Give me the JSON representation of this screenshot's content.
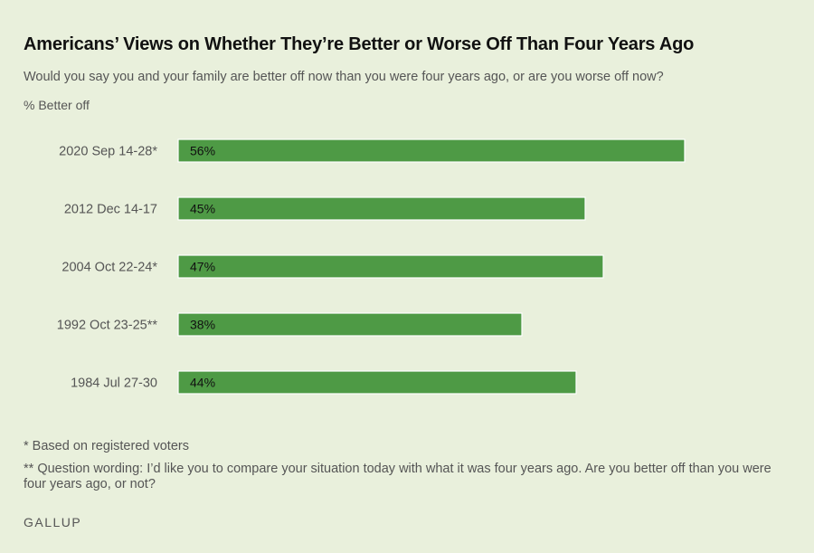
{
  "title": "Americans’ Views on Whether They’re Better or Worse Off Than Four Years Ago",
  "subtitle": "Would you say you and your family are better off now than you were four years ago, or are you worse off now?",
  "ylabel": "% Better off",
  "notes": [
    "* Based on registered voters",
    "** Question wording: I’d like you to compare your situation today with what it was four years ago. Are you better off than you were four years ago, or not?"
  ],
  "source": "GALLUP",
  "colors": {
    "bar": "#4e9a45",
    "background": "#e9f0dc"
  },
  "chart_data": {
    "type": "bar",
    "orientation": "horizontal",
    "categories": [
      "2020 Sep 14-28*",
      "2012 Dec 14-17",
      "2004 Oct 22-24*",
      "1992 Oct 23-25**",
      "1984 Jul 27-30"
    ],
    "values": [
      56,
      45,
      47,
      38,
      44
    ],
    "value_labels": [
      "56%",
      "45%",
      "47%",
      "38%",
      "44%"
    ],
    "xlim": [
      0,
      100
    ],
    "grid": false,
    "legend": "none"
  }
}
